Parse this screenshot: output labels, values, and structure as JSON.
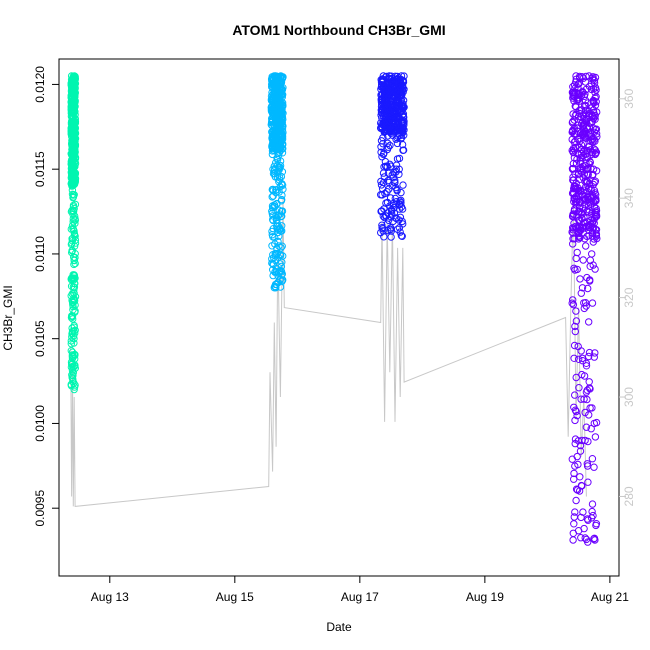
{
  "chart_data": {
    "type": "scatter",
    "title": "ATOM1 Northbound CH3Br_GMI",
    "xlabel": "Date",
    "ylabel": "CH3Br_GMI",
    "xlim": [
      "2016-08-12T04:30",
      "2016-08-21T03:30"
    ],
    "ylim": [
      0.0091,
      0.01215
    ],
    "y2lim": [
      264,
      368
    ],
    "x_ticks": [
      {
        "date": "2016-08-13T00:00",
        "label": "Aug 13"
      },
      {
        "date": "2016-08-15T00:00",
        "label": "Aug 15"
      },
      {
        "date": "2016-08-17T00:00",
        "label": "Aug 17"
      },
      {
        "date": "2016-08-19T00:00",
        "label": "Aug 19"
      },
      {
        "date": "2016-08-21T00:00",
        "label": "Aug 21"
      }
    ],
    "y_ticks": [
      "0.0095",
      "0.0100",
      "0.0105",
      "0.0110",
      "0.0115",
      "0.0120"
    ],
    "y2_ticks": [
      "280",
      "300",
      "320",
      "340",
      "360"
    ],
    "y2_color": "#c8c8c8",
    "grid": false,
    "series": [
      {
        "color": "#00f5b0",
        "marker": "open-circle",
        "t_range": [
          "2016-08-12T09:10",
          "2016-08-12T10:50"
        ],
        "points": [
          [
            "2016-08-12T09:15",
            0.01125
          ],
          [
            "2016-08-12T09:20",
            0.01205
          ],
          [
            "2016-08-12T09:30",
            0.0114
          ],
          [
            "2016-08-12T09:40",
            0.0119
          ],
          [
            "2016-08-12T09:50",
            0.01115
          ],
          [
            "2016-08-12T10:00",
            0.012
          ],
          [
            "2016-08-12T10:10",
            0.0116
          ],
          [
            "2016-08-12T10:15",
            0.0105
          ],
          [
            "2016-08-12T10:20",
            0.0102
          ],
          [
            "2016-08-12T10:25",
            0.01205
          ],
          [
            "2016-08-12T10:35",
            0.0112
          ],
          [
            "2016-08-12T10:45",
            0.01195
          ]
        ]
      },
      {
        "color": "#00b8ff",
        "marker": "open-circle",
        "t_range": [
          "2016-08-15T14:00",
          "2016-08-15T18:30"
        ],
        "points": [
          [
            "2016-08-15T14:10",
            0.012
          ],
          [
            "2016-08-15T14:40",
            0.0115
          ],
          [
            "2016-08-15T15:10",
            0.0108
          ],
          [
            "2016-08-15T15:40",
            0.01205
          ],
          [
            "2016-08-15T16:10",
            0.0112
          ],
          [
            "2016-08-15T16:40",
            0.0118
          ],
          [
            "2016-08-15T17:10",
            0.0116
          ],
          [
            "2016-08-15T17:40",
            0.01205
          ],
          [
            "2016-08-15T18:20",
            0.01165
          ]
        ]
      },
      {
        "color": "#1a1aff",
        "marker": "open-circle",
        "t_range": [
          "2016-08-17T08:00",
          "2016-08-17T17:00"
        ],
        "points": [
          [
            "2016-08-17T08:10",
            0.0116
          ],
          [
            "2016-08-17T09:00",
            0.01205
          ],
          [
            "2016-08-17T10:00",
            0.0113
          ],
          [
            "2016-08-17T11:00",
            0.01185
          ],
          [
            "2016-08-17T12:00",
            0.0111
          ],
          [
            "2016-08-17T13:00",
            0.012
          ],
          [
            "2016-08-17T14:00",
            0.0115
          ],
          [
            "2016-08-17T15:00",
            0.0112
          ],
          [
            "2016-08-17T16:00",
            0.01205
          ],
          [
            "2016-08-17T16:50",
            0.0117
          ]
        ]
      },
      {
        "color": "#6a00ff",
        "marker": "open-circle",
        "t_range": [
          "2016-08-20T09:30",
          "2016-08-20T19:00"
        ],
        "points": [
          [
            "2016-08-20T09:40",
            0.0115
          ],
          [
            "2016-08-20T11:00",
            0.01205
          ],
          [
            "2016-08-20T12:30",
            0.0112
          ],
          [
            "2016-08-20T13:30",
            0.0108
          ],
          [
            "2016-08-20T14:30",
            0.0099
          ],
          [
            "2016-08-20T15:30",
            0.0093
          ],
          [
            "2016-08-20T16:00",
            0.01205
          ],
          [
            "2016-08-20T17:00",
            0.011
          ],
          [
            "2016-08-20T18:00",
            0.01
          ],
          [
            "2016-08-20T18:50",
            0.0116
          ]
        ]
      }
    ],
    "secondary_line": {
      "color": "#c8c8c8",
      "axis": "right",
      "points": [
        [
          "2016-08-12T09:00",
          310
        ],
        [
          "2016-08-12T09:20",
          280
        ],
        [
          "2016-08-12T09:40",
          305
        ],
        [
          "2016-08-12T10:00",
          278
        ],
        [
          "2016-08-12T10:20",
          300
        ],
        [
          "2016-08-12T10:40",
          278
        ],
        [
          "2016-08-15T13:00",
          282
        ],
        [
          "2016-08-15T13:30",
          305
        ],
        [
          "2016-08-15T14:30",
          285
        ],
        [
          "2016-08-15T15:10",
          315
        ],
        [
          "2016-08-15T15:50",
          290
        ],
        [
          "2016-08-15T16:30",
          330
        ],
        [
          "2016-08-15T17:30",
          300
        ],
        [
          "2016-08-15T18:30",
          340
        ],
        [
          "2016-08-15T19:00",
          318
        ],
        [
          "2016-08-17T08:00",
          315
        ],
        [
          "2016-08-17T08:30",
          335
        ],
        [
          "2016-08-17T09:30",
          295
        ],
        [
          "2016-08-17T10:30",
          335
        ],
        [
          "2016-08-17T11:30",
          305
        ],
        [
          "2016-08-17T12:30",
          335
        ],
        [
          "2016-08-17T13:30",
          295
        ],
        [
          "2016-08-17T14:30",
          330
        ],
        [
          "2016-08-17T15:30",
          300
        ],
        [
          "2016-08-17T16:30",
          330
        ],
        [
          "2016-08-17T17:00",
          303
        ],
        [
          "2016-08-20T07:00",
          316
        ],
        [
          "2016-08-20T08:00",
          292
        ],
        [
          "2016-08-20T09:00",
          318
        ],
        [
          "2016-08-20T10:00",
          340
        ],
        [
          "2016-08-20T11:00",
          296
        ],
        [
          "2016-08-20T12:00",
          318
        ],
        [
          "2016-08-20T13:00",
          288
        ],
        [
          "2016-08-20T14:00",
          300
        ],
        [
          "2016-08-20T15:00",
          280
        ]
      ]
    }
  }
}
